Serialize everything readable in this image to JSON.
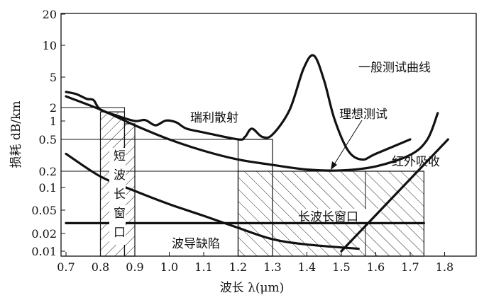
{
  "chart_data": {
    "type": "line",
    "xlabel": "波长 λ(μm)",
    "ylabel": "损耗 dB/km",
    "xlim": [
      0.68,
      1.9
    ],
    "x_ticks": [
      "0.7",
      "0.8",
      "0.9",
      "1.0",
      "1.1",
      "1.2",
      "1.3",
      "1.4",
      "1.5",
      "1.6",
      "1.7",
      "1.8"
    ],
    "y_ticks": [
      "20",
      "10",
      "5",
      "2",
      "1",
      "0.5",
      "0.2",
      "0.1",
      "0.05",
      "0.02",
      "0.01"
    ],
    "y_scale": "log",
    "grid": false,
    "series": [
      {
        "name": "一般测试曲线",
        "points": [
          [
            0.7,
            3.2
          ],
          [
            0.73,
            3.0
          ],
          [
            0.76,
            2.6
          ],
          [
            0.78,
            2.5
          ],
          [
            0.8,
            1.8
          ],
          [
            0.85,
            1.3
          ],
          [
            0.9,
            1.0
          ],
          [
            0.93,
            1.05
          ],
          [
            0.96,
            0.85
          ],
          [
            0.99,
            1.02
          ],
          [
            1.02,
            0.95
          ],
          [
            1.05,
            0.75
          ],
          [
            1.1,
            0.65
          ],
          [
            1.2,
            0.5
          ],
          [
            1.22,
            0.55
          ],
          [
            1.24,
            0.75
          ],
          [
            1.27,
            0.55
          ],
          [
            1.3,
            0.6
          ],
          [
            1.35,
            1.8
          ],
          [
            1.39,
            6
          ],
          [
            1.42,
            8
          ],
          [
            1.45,
            4.5
          ],
          [
            1.48,
            1.1
          ],
          [
            1.52,
            0.36
          ],
          [
            1.56,
            0.28
          ],
          [
            1.6,
            0.33
          ],
          [
            1.7,
            0.5
          ]
        ]
      },
      {
        "name": "理想测试",
        "points": [
          [
            0.7,
            2.8
          ],
          [
            0.8,
            1.8
          ],
          [
            0.9,
            0.85
          ],
          [
            1.0,
            0.5
          ],
          [
            1.1,
            0.36
          ],
          [
            1.2,
            0.28
          ],
          [
            1.3,
            0.24
          ],
          [
            1.4,
            0.21
          ],
          [
            1.5,
            0.205
          ],
          [
            1.6,
            0.23
          ],
          [
            1.7,
            0.32
          ],
          [
            1.75,
            0.5
          ],
          [
            1.78,
            1.5
          ]
        ]
      },
      {
        "name": "瑞利散射",
        "points": [
          [
            0.7,
            0.33
          ],
          [
            0.8,
            0.16
          ],
          [
            0.9,
            0.09
          ],
          [
            1.0,
            0.06
          ],
          [
            1.1,
            0.04
          ],
          [
            1.2,
            0.025
          ],
          [
            1.3,
            0.016
          ],
          [
            1.4,
            0.013
          ],
          [
            1.55,
            0.011
          ]
        ]
      },
      {
        "name": "波导缺陷",
        "points": [
          [
            0.7,
            0.03
          ],
          [
            1.74,
            0.03
          ]
        ]
      },
      {
        "name": "红外吸收",
        "points": [
          [
            1.5,
            0.01
          ],
          [
            1.81,
            0.5
          ]
        ]
      }
    ],
    "annotations": {
      "short_window": "短波长窗口",
      "short_window_chars": [
        "短",
        "波",
        "长",
        "窗",
        "口"
      ],
      "long_window": "长波长窗口",
      "general": "一般测试曲线",
      "ideal": "理想测试",
      "rayleigh": "瑞利散射",
      "waveguide": "波导缺陷",
      "infrared": "红外吸收"
    },
    "windows": [
      {
        "name": "短波长窗口",
        "x": [
          0.8,
          0.9
        ]
      },
      {
        "name": "长波长窗口",
        "x": [
          1.2,
          1.74
        ]
      }
    ]
  }
}
